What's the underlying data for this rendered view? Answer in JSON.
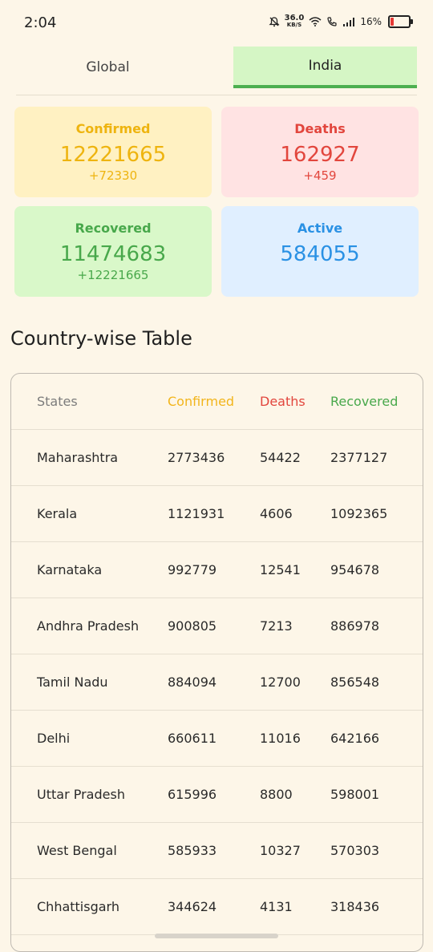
{
  "status_bar": {
    "time": "2:04",
    "net_speed": "36.0",
    "net_unit": "KB/S",
    "battery": "16%"
  },
  "tabs": [
    {
      "label": "Global",
      "selected": false
    },
    {
      "label": "India",
      "selected": true
    }
  ],
  "summary": {
    "confirmed": {
      "label": "Confirmed",
      "value": "12221665",
      "delta": "+72330"
    },
    "deaths": {
      "label": "Deaths",
      "value": "162927",
      "delta": "+459"
    },
    "recovered": {
      "label": "Recovered",
      "value": "11474683",
      "delta": "+12221665"
    },
    "active": {
      "label": "Active",
      "value": "584055"
    }
  },
  "colors": {
    "confirmed": "#eeb40f",
    "deaths": "#e2463d",
    "recovered": "#48a84b",
    "active": "#2a91e4",
    "tab_active_bg": "#d5f6c5",
    "tab_active_line": "#4caf50"
  },
  "table": {
    "title": "Country-wise Table",
    "headers": {
      "state": "States",
      "confirmed": "Confirmed",
      "deaths": "Deaths",
      "recovered": "Recovered"
    },
    "rows": [
      {
        "state": "Maharashtra",
        "confirmed": "2773436",
        "deaths": "54422",
        "recovered": "2377127"
      },
      {
        "state": "Kerala",
        "confirmed": "1121931",
        "deaths": "4606",
        "recovered": "1092365"
      },
      {
        "state": "Karnataka",
        "confirmed": "992779",
        "deaths": "12541",
        "recovered": "954678"
      },
      {
        "state": "Andhra Pradesh",
        "confirmed": "900805",
        "deaths": "7213",
        "recovered": "886978"
      },
      {
        "state": "Tamil Nadu",
        "confirmed": "884094",
        "deaths": "12700",
        "recovered": "856548"
      },
      {
        "state": "Delhi",
        "confirmed": "660611",
        "deaths": "11016",
        "recovered": "642166"
      },
      {
        "state": "Uttar Pradesh",
        "confirmed": "615996",
        "deaths": "8800",
        "recovered": "598001"
      },
      {
        "state": "West Bengal",
        "confirmed": "585933",
        "deaths": "10327",
        "recovered": "570303"
      },
      {
        "state": "Chhattisgarh",
        "confirmed": "344624",
        "deaths": "4131",
        "recovered": "318436"
      }
    ]
  }
}
